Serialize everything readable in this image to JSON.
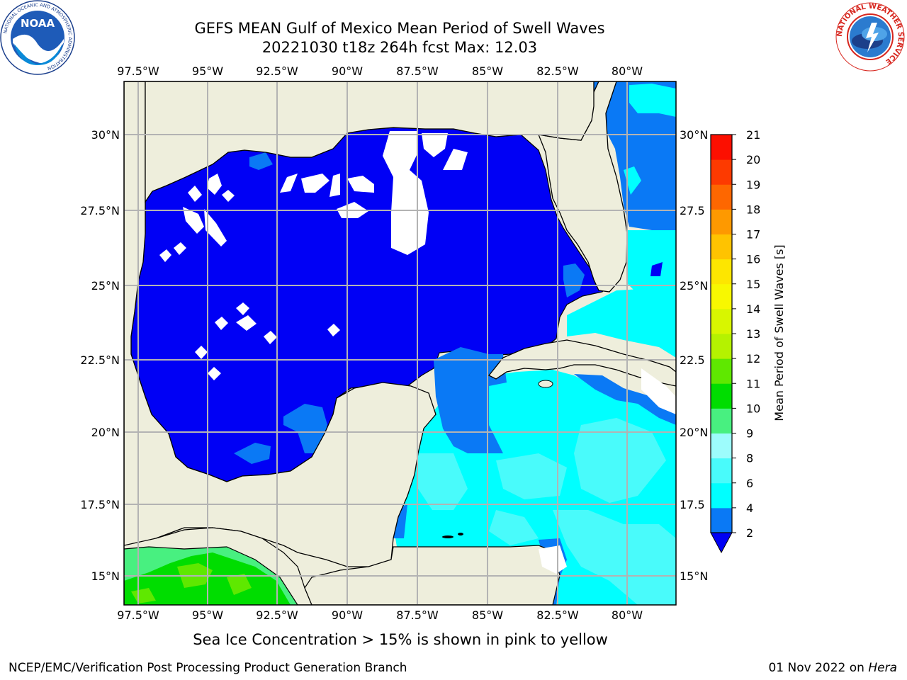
{
  "title_line1": "GEFS MEAN Gulf of Mexico Mean Period of Swell Waves",
  "title_line2": "20221030 t18z 264h fcst   Max: 12.03",
  "lon_labels": [
    "97.5°W",
    "95°W",
    "92.5°W",
    "90°W",
    "87.5°W",
    "85°W",
    "82.5°W",
    "80°W"
  ],
  "lat_labels_left": [
    "30°N",
    "27.5°N",
    "25°N",
    "22.5°N",
    "20°N",
    "17.5°N",
    "15°N"
  ],
  "lat_labels_right": [
    "30°N",
    "27.5",
    "25°N",
    "22.5",
    "20°N",
    "17.5",
    "15°N"
  ],
  "colorbar": {
    "label": "Mean Period of Swell Waves [s]",
    "ticks": [
      "2",
      "4",
      "6",
      "8",
      "9",
      "10",
      "11",
      "12",
      "13",
      "14",
      "15",
      "16",
      "17",
      "18",
      "19",
      "20",
      "21"
    ],
    "colors": [
      "#0a79f5",
      "#00ffff",
      "#49fbfb",
      "#9dfcfc",
      "#48f080",
      "#00dd00",
      "#5fe800",
      "#b5f200",
      "#d8f600",
      "#f8f800",
      "#fde600",
      "#ffc300",
      "#fe9900",
      "#fe6700",
      "#fd3a00",
      "#fc0f00"
    ],
    "extend_color": "#0000f5"
  },
  "colors": {
    "land": "#eeeedc",
    "deep_blue": "#0000f5",
    "mid_blue": "#0a79f5",
    "cyan": "#00ffff",
    "light_cyan": "#49fbfb",
    "green": "#00dd00",
    "light_green": "#48f080",
    "grid": "#b3b3b3"
  },
  "logos": {
    "noaa": {
      "text": "NOAA",
      "ring_text": "NATIONAL OCEANIC AND ATMOSPHERIC ADMINISTRATION"
    },
    "nws": {
      "ring_text": "NATIONAL WEATHER SERVICE"
    }
  },
  "subcaption": "Sea Ice Concentration > 15% is shown in pink to yellow",
  "footer_left": "NCEP/EMC/Verification Post Processing Product Generation Branch",
  "footer_right_date": "01 Nov 2022 on ",
  "footer_right_host": "Hera"
}
